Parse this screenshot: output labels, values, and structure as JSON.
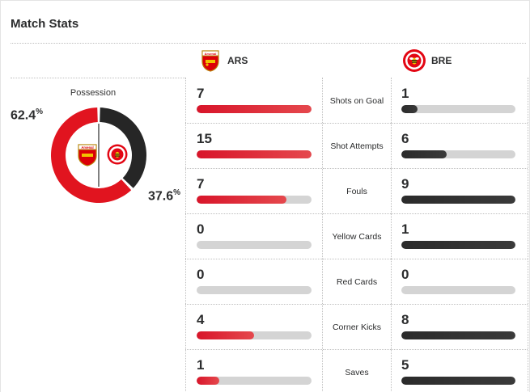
{
  "header": {
    "title": "Match Stats"
  },
  "teams": {
    "home": {
      "abbr": "ARS",
      "crest": "arsenal-crest",
      "color": "#db0007"
    },
    "away": {
      "abbr": "BRE",
      "crest": "brentford-crest",
      "color": "#2b2b2b"
    }
  },
  "possession": {
    "label": "Possession",
    "home_value": "62.4",
    "away_value": "37.6",
    "unit": "%",
    "home_fraction": 0.624
  },
  "stats": [
    {
      "label": "Shots on Goal",
      "home": "7",
      "away": "1",
      "home_fill": 1.0,
      "away_fill": 0.14
    },
    {
      "label": "Shot Attempts",
      "home": "15",
      "away": "6",
      "home_fill": 1.0,
      "away_fill": 0.4
    },
    {
      "label": "Fouls",
      "home": "7",
      "away": "9",
      "home_fill": 0.78,
      "away_fill": 1.0
    },
    {
      "label": "Yellow Cards",
      "home": "0",
      "away": "1",
      "home_fill": 0,
      "away_fill": 1.0
    },
    {
      "label": "Red Cards",
      "home": "0",
      "away": "0",
      "home_fill": 0,
      "away_fill": 0
    },
    {
      "label": "Corner Kicks",
      "home": "4",
      "away": "8",
      "home_fill": 0.5,
      "away_fill": 1.0
    },
    {
      "label": "Saves",
      "home": "1",
      "away": "5",
      "home_fill": 0.2,
      "away_fill": 1.0
    }
  ],
  "colors": {
    "accent_red": "#db0007",
    "dark": "#2b2b2b",
    "track": "#d4d4d4"
  }
}
